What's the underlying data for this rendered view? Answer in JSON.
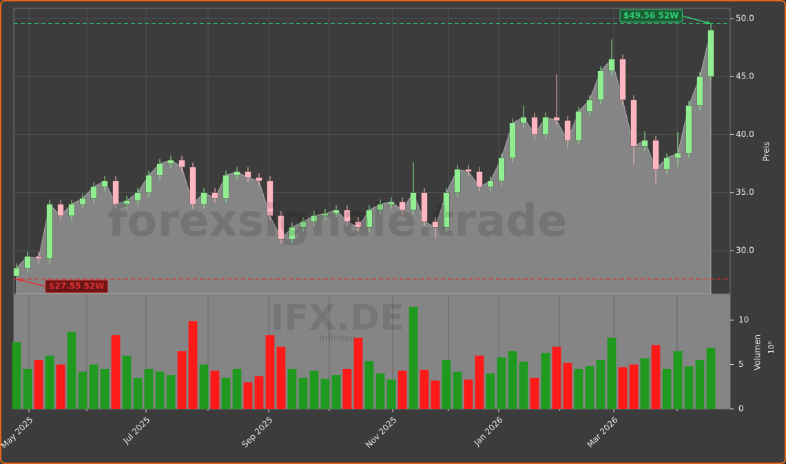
{
  "chart_data": {
    "type": "candlestick",
    "watermark": "forexsignale.trade",
    "ticker": "IFX.DE",
    "company": "Infineon",
    "ylabel": "Preis",
    "y2label": "Volumen",
    "y2exponent": "10⁶",
    "xlim": [
      -0.25,
      64.75
    ],
    "xticks": [
      {
        "value": 1.125,
        "label": "May 2025"
      },
      {
        "value": 11.75,
        "label": "Jul 2025"
      },
      {
        "value": 22.875,
        "label": "Sep 2025"
      },
      {
        "value": 34.125,
        "label": "Nov 2025"
      },
      {
        "value": 43.75,
        "label": "Jan 2026"
      },
      {
        "value": 54.19,
        "label": "Mar 2026"
      }
    ],
    "xminorticks": [
      6.375,
      17.375,
      28.375,
      39.19,
      49.25,
      59.94
    ],
    "ylim": [
      26.26,
      50.89
    ],
    "yticks": [
      {
        "value": 30,
        "label": "30.0"
      },
      {
        "value": 35,
        "label": "35.0"
      },
      {
        "value": 40,
        "label": "40.0"
      },
      {
        "value": 45,
        "label": "45.0"
      },
      {
        "value": 50,
        "label": "50.0"
      }
    ],
    "y2lim": [
      0,
      12.87
    ],
    "y2ticks": [
      0,
      5,
      10
    ],
    "grid": true,
    "up_color": "#90ee90",
    "down_color": "#ffb6c1",
    "area_color": "#858585",
    "volume_up_color": "#1f9a1f",
    "volume_down_color": "#ff1a1a",
    "open": [
      27.8,
      28.5,
      29.5,
      29.3,
      34,
      33,
      34,
      34.5,
      35.5,
      36,
      34,
      34.3,
      35,
      36.5,
      37.5,
      37.8,
      37.2,
      34,
      35,
      34.5,
      36.5,
      36.8,
      36.3,
      36,
      33,
      31,
      32,
      32.5,
      33,
      33.2,
      33.5,
      32.5,
      32,
      33.5,
      34,
      34.2,
      33.5,
      35,
      32.5,
      32,
      35,
      37,
      36.8,
      35.5,
      36,
      38,
      41,
      41.5,
      40,
      41.5,
      41.2,
      39.5,
      42,
      43,
      45.5,
      46.5,
      43,
      39,
      39.5,
      37,
      38,
      38.4,
      42.5,
      45
    ],
    "high": [
      28.9,
      29.9,
      29.9,
      34.4,
      34.4,
      34.4,
      34.9,
      35.9,
      36.4,
      36.4,
      34.7,
      35.4,
      36.9,
      37.9,
      38.2,
      38.2,
      37.6,
      35.4,
      35.4,
      36.9,
      37.2,
      37.2,
      36.7,
      36.4,
      33.4,
      32.4,
      32.9,
      33.4,
      33.6,
      33.9,
      33.9,
      32.9,
      33.9,
      34.4,
      34.6,
      34.6,
      37.6,
      35.4,
      32.9,
      35.4,
      37.4,
      37.4,
      37.2,
      36.4,
      38.4,
      41.4,
      42.5,
      41.9,
      41.9,
      45.2,
      41.6,
      42.4,
      43.4,
      45.9,
      48.2,
      46.9,
      43.4,
      40.3,
      39.9,
      38.4,
      40.2,
      42.9,
      45.4,
      49.56
    ],
    "low": [
      27.55,
      28.1,
      28.9,
      28.9,
      32.6,
      32.6,
      33.6,
      34.1,
      35.1,
      33.6,
      33.6,
      33.9,
      34.6,
      36.1,
      37.1,
      36.8,
      33.6,
      33.6,
      34.1,
      34.1,
      36.1,
      35.9,
      35.6,
      32.6,
      30.6,
      30.6,
      31.6,
      32.1,
      32.6,
      32.8,
      32.1,
      31.6,
      31.6,
      33.1,
      33.6,
      33.1,
      33.1,
      32.1,
      31.1,
      31.6,
      34.6,
      36.4,
      35.1,
      35.1,
      35.6,
      37.6,
      40.6,
      39.6,
      39.6,
      40.8,
      38.9,
      39.1,
      41.6,
      42.6,
      45.1,
      42.6,
      37.4,
      38.6,
      35.8,
      36.6,
      37.2,
      38,
      42.1,
      44.6
    ],
    "close": [
      28.5,
      29.5,
      29.3,
      34,
      33,
      34,
      34.5,
      35.5,
      36,
      34,
      34.3,
      35,
      36.5,
      37.5,
      37.8,
      37.2,
      34,
      35,
      34.5,
      36.5,
      36.8,
      36.3,
      36,
      33,
      31,
      32,
      32.5,
      33,
      33.2,
      33.5,
      32.5,
      32,
      33.5,
      34,
      34.2,
      33.5,
      35,
      32.5,
      32,
      35,
      37,
      36.8,
      35.5,
      36,
      38,
      41,
      41.5,
      40,
      41.5,
      41.2,
      39.5,
      42,
      43,
      45.5,
      46.5,
      43,
      39,
      39.5,
      37,
      38,
      38.4,
      42.5,
      45,
      49
    ],
    "volume": [
      7.5,
      4.5,
      5.5,
      6,
      5,
      8.7,
      4.2,
      5,
      4.5,
      8.3,
      6,
      3.5,
      4.5,
      4.2,
      3.8,
      6.5,
      9.9,
      5,
      4.3,
      3.5,
      4.5,
      3,
      3.7,
      8.3,
      7,
      4.5,
      3.5,
      4.3,
      3.4,
      3.8,
      4.5,
      8,
      5.4,
      4,
      3.3,
      4.3,
      11.5,
      4.4,
      3.2,
      5.5,
      4.2,
      3.3,
      6,
      4,
      5.8,
      6.5,
      5.3,
      3.5,
      6.3,
      7,
      5.2,
      4.5,
      4.8,
      5.5,
      8,
      4.7,
      5,
      5.7,
      7.2,
      4.5,
      6.5,
      4.8,
      5.5,
      6.9
    ],
    "hlines": [
      {
        "value": 49.56,
        "label": "$49.56 52W",
        "color": "#2ecc71"
      },
      {
        "value": 27.55,
        "label": "$27.55 52W",
        "color": "#e03030"
      }
    ]
  }
}
